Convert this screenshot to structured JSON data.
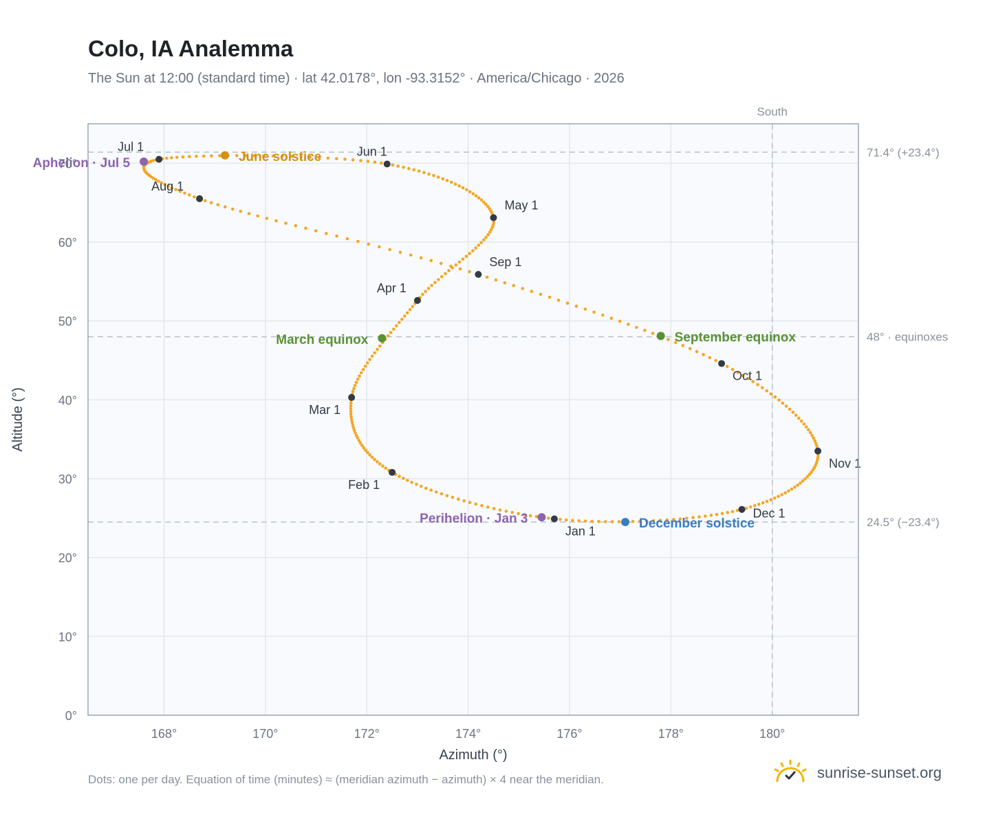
{
  "header": {
    "title": "Colo, IA Analemma",
    "subtitle": "The Sun at 12:00 (standard time) · lat 42.0178°, lon -93.3152° · America/Chicago · 2026"
  },
  "footer": {
    "note": "Dots: one per day. Equation of time (minutes) ≈ (meridian azimuth − azimuth) × 4 near the meridian.",
    "brand": "sunrise-sunset.org"
  },
  "colors": {
    "curve": "#f5a623",
    "month_marker": "#333a44",
    "june_solstice": "#d4900f",
    "december_solstice": "#3b7bbf",
    "equinox": "#5a9134",
    "apsis": "#8e63b0",
    "plot_bg": "#f8fafd",
    "grid": "#e3e8ee",
    "ref_line": "#b7c2cd",
    "axis_border": "#9aa6b4"
  },
  "icons": {
    "brand": "sun-check-icon"
  },
  "chart_data": {
    "type": "scatter",
    "xlabel": "Azimuth (°)",
    "ylabel": "Altitude (°)",
    "xlim": [
      166.5,
      181.7
    ],
    "ylim": [
      0,
      75
    ],
    "xticks": [
      168,
      170,
      172,
      174,
      176,
      178,
      180
    ],
    "yticks": [
      0,
      10,
      20,
      30,
      40,
      50,
      60,
      70
    ],
    "xtick_format": "{v}°",
    "ytick_format": "{v}°",
    "grid": true,
    "meridian": {
      "azimuth": 180,
      "label": "South"
    },
    "reference_lines": [
      {
        "altitude": 71.4,
        "label": "71.4° (+23.4°)"
      },
      {
        "altitude": 48,
        "label": "48° · equinoxes"
      },
      {
        "altitude": 24.5,
        "label": "24.5° (−23.4°)"
      }
    ],
    "monthly_points": [
      {
        "label": "Jan 1",
        "az": 175.7,
        "alt": 24.9
      },
      {
        "label": "Feb 1",
        "az": 172.5,
        "alt": 30.8
      },
      {
        "label": "Mar 1",
        "az": 171.7,
        "alt": 40.3
      },
      {
        "label": "Apr 1",
        "az": 173.0,
        "alt": 52.6
      },
      {
        "label": "May 1",
        "az": 174.5,
        "alt": 63.1
      },
      {
        "label": "Jun 1",
        "az": 172.4,
        "alt": 69.9
      },
      {
        "label": "Jul 1",
        "az": 167.9,
        "alt": 70.5
      },
      {
        "label": "Aug 1",
        "az": 168.7,
        "alt": 65.5
      },
      {
        "label": "Sep 1",
        "az": 174.2,
        "alt": 55.9
      },
      {
        "label": "Oct 1",
        "az": 179.0,
        "alt": 44.6
      },
      {
        "label": "Nov 1",
        "az": 180.9,
        "alt": 33.5
      },
      {
        "label": "Dec 1",
        "az": 179.4,
        "alt": 26.1
      }
    ],
    "events": [
      {
        "label": "June solstice",
        "az": 169.2,
        "alt": 71.0,
        "kind": "june_solstice"
      },
      {
        "label": "December solstice",
        "az": 177.1,
        "alt": 24.5,
        "kind": "december_solstice"
      },
      {
        "label": "March equinox",
        "az": 172.3,
        "alt": 47.8,
        "kind": "equinox"
      },
      {
        "label": "September equinox",
        "az": 177.8,
        "alt": 48.1,
        "kind": "equinox"
      },
      {
        "label": "Perihelion · Jan 3",
        "az": 175.45,
        "alt": 25.1,
        "kind": "apsis"
      },
      {
        "label": "Aphelion · Jul 5",
        "az": 167.6,
        "alt": 70.2,
        "kind": "apsis"
      }
    ]
  }
}
